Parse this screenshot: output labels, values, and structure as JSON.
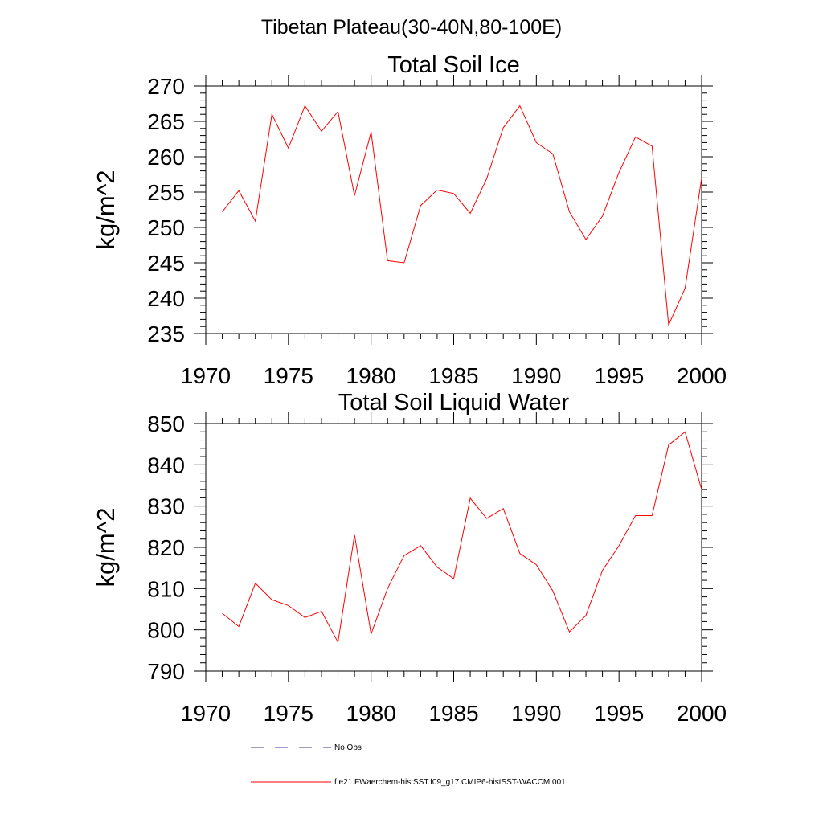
{
  "figure": {
    "suptitle": "Tibetan Plateau(30-40N,80-100E)"
  },
  "legend": {
    "placement": "bottom",
    "items": [
      {
        "label": "No Obs",
        "color": "#3a3a8c",
        "dashed": true
      },
      {
        "label": "f.e21.FWaerchem-histSST.f09_g17.CMIP6-histSST-WACCM.001",
        "color": "#ff0000",
        "dashed": false
      }
    ]
  },
  "chart_data": [
    {
      "type": "line",
      "title": "Total Soil Ice",
      "xlabel": "",
      "ylabel": "kg/m^2",
      "xlim": [
        1970,
        2000
      ],
      "ylim": [
        235,
        270
      ],
      "xticks": [
        1970,
        1975,
        1980,
        1985,
        1990,
        1995,
        2000
      ],
      "yticks": [
        235,
        240,
        245,
        250,
        255,
        260,
        265,
        270
      ],
      "grid": false,
      "series": [
        {
          "color": "#ff0000",
          "x": [
            1971,
            1972,
            1973,
            1974,
            1975,
            1976,
            1977,
            1978,
            1979,
            1980,
            1981,
            1982,
            1983,
            1984,
            1985,
            1986,
            1987,
            1988,
            1989,
            1990,
            1991,
            1992,
            1993,
            1994,
            1995,
            1996,
            1997,
            1998,
            1999,
            2000
          ],
          "values": [
            252.2,
            255.2,
            250.9,
            266.0,
            261.2,
            267.2,
            263.6,
            266.4,
            254.5,
            263.5,
            245.3,
            245.0,
            253.1,
            255.3,
            254.8,
            252.0,
            256.9,
            264.1,
            267.2,
            262.0,
            260.4,
            252.2,
            248.3,
            251.6,
            257.8,
            262.8,
            261.5,
            236.2,
            241.4,
            257.0
          ]
        }
      ]
    },
    {
      "type": "line",
      "title": "Total Soil Liquid Water",
      "xlabel": "",
      "ylabel": "kg/m^2",
      "xlim": [
        1970,
        2000
      ],
      "ylim": [
        790,
        850
      ],
      "xticks": [
        1970,
        1975,
        1980,
        1985,
        1990,
        1995,
        2000
      ],
      "yticks": [
        790,
        800,
        810,
        820,
        830,
        840,
        850
      ],
      "grid": false,
      "series": [
        {
          "color": "#ff0000",
          "x": [
            1971,
            1972,
            1973,
            1974,
            1975,
            1976,
            1977,
            1978,
            1979,
            1980,
            1981,
            1982,
            1983,
            1984,
            1985,
            1986,
            1987,
            1988,
            1989,
            1990,
            1991,
            1992,
            1993,
            1994,
            1995,
            1996,
            1997,
            1998,
            1999,
            2000
          ],
          "values": [
            804.0,
            800.8,
            811.3,
            807.3,
            805.9,
            803.0,
            804.5,
            797.0,
            823.0,
            799.0,
            810.0,
            818.0,
            820.4,
            815.2,
            812.4,
            831.9,
            827.0,
            829.4,
            818.5,
            815.8,
            809.4,
            799.5,
            803.5,
            814.4,
            820.4,
            827.7,
            827.7,
            844.8,
            848.0,
            834.0
          ]
        }
      ]
    }
  ]
}
